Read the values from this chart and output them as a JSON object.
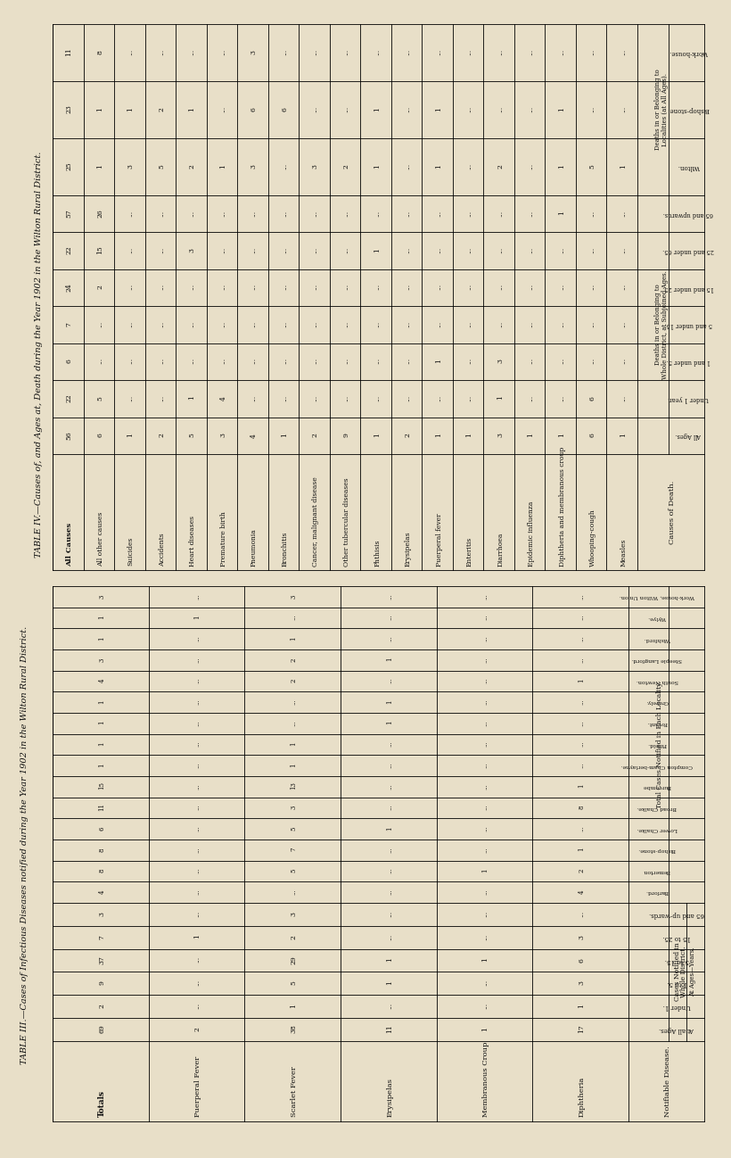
{
  "bg_color": "#e8dfc8",
  "page_title_t3": "TABLE III.—Cases of Infectious Diseases notified during the Year 1902 in the Wilton Rural District.",
  "page_title_t4": "TABLE IV.—Causes of, and Ages at, Death during the Year 1902 in the Wilton Rural District.",
  "diseases": [
    "Diphtheria",
    "Membranous Croup",
    "Erysipelas",
    "Scarlet Fever",
    "Puerperal Fever",
    "Totals"
  ],
  "whole_district_headers": [
    "At all Ages.",
    "Under 1.",
    "1 to 5.",
    "5 to 15.",
    "15 to 25.",
    "65 and up-wards."
  ],
  "whole_district_data": [
    [
      17,
      1,
      3,
      6,
      3,
      "..."
    ],
    [
      1,
      "...",
      "...",
      1,
      "...",
      "..."
    ],
    [
      11,
      "...",
      1,
      1,
      "...",
      "..."
    ],
    [
      38,
      1,
      5,
      29,
      2,
      3
    ],
    [
      2,
      "...",
      "...",
      "...",
      1,
      "..."
    ],
    [
      69,
      2,
      9,
      37,
      7,
      3
    ]
  ],
  "locality_headers": [
    "Barford.",
    "Bemerton",
    "Bishop-stone.",
    "Lower Chalke.",
    "Broad Chalke.",
    "Burcombe",
    "Compton Cham-berlayne.",
    "Fifield.",
    "Fovant.",
    "Grovely.",
    "South Newton.",
    "Steeple Langford.",
    "Wishford.",
    "Wylye.",
    "Work-house, Wilton Union."
  ],
  "locality_data": [
    [
      4,
      2,
      1,
      "...",
      8,
      1,
      "...",
      "...",
      "...",
      "...",
      1,
      "...",
      "...",
      "...",
      "..."
    ],
    [
      "...",
      1,
      "...",
      "...",
      "...",
      "...",
      "...",
      "...",
      "...",
      "...",
      "...",
      "...",
      "...",
      "...",
      "..."
    ],
    [
      "...",
      "...",
      "...",
      1,
      "...",
      "...",
      "...",
      "...",
      1,
      1,
      "...",
      1,
      "...",
      "...",
      "..."
    ],
    [
      "...",
      5,
      7,
      5,
      3,
      13,
      1,
      1,
      "...",
      "...",
      2,
      2,
      1,
      "...",
      3
    ],
    [
      "...",
      "...",
      "...",
      "...",
      "...",
      "...",
      "...",
      "...",
      "...",
      "...",
      "...",
      "...",
      "...",
      1,
      "..."
    ],
    [
      4,
      8,
      8,
      6,
      11,
      15,
      1,
      1,
      1,
      1,
      4,
      3,
      1,
      1,
      3
    ]
  ],
  "causes_of_death": [
    "Measles",
    "Whooping-cough",
    "Diphtheria and membranous croup",
    "Epidemic influenza",
    "Diarrhoea",
    "Enteritis",
    "Puerperal fever",
    "Erysipelas",
    "Phthisis",
    "Other tubercular diseases",
    "Cancer, malignant disease",
    "Bronchitis",
    "Pneumonia",
    "Premature birth",
    "Heart diseases",
    "Accidents",
    "Suicides",
    "All other causes",
    "All Causes"
  ],
  "t4_age_headers": [
    "All Ages.",
    "Under 1 year.",
    "1 and under 5.",
    "5 and under 15.",
    "15 and under 25.",
    "25 and under 65.",
    "65 and upwards."
  ],
  "t4_age_data": [
    [
      1,
      "...",
      "...",
      "...",
      "...",
      "...",
      "..."
    ],
    [
      6,
      6,
      "...",
      "...",
      "...",
      "...",
      "..."
    ],
    [
      1,
      "...",
      "...",
      "...",
      "...",
      "...",
      1
    ],
    [
      1,
      "...",
      "...",
      "...",
      "...",
      "...",
      "..."
    ],
    [
      3,
      1,
      3,
      "...",
      "...",
      "...",
      "..."
    ],
    [
      1,
      "...",
      "...",
      "...",
      "...",
      "...",
      "..."
    ],
    [
      1,
      "...",
      1,
      "...",
      "...",
      "...",
      "..."
    ],
    [
      2,
      "...",
      "...",
      "...",
      "...",
      "...",
      "..."
    ],
    [
      1,
      "...",
      "...",
      "...",
      "...",
      1,
      "..."
    ],
    [
      9,
      "...",
      "...",
      "...",
      "...",
      "...",
      "..."
    ],
    [
      2,
      "...",
      "...",
      "...",
      "...",
      "...",
      "..."
    ],
    [
      1,
      "...",
      "...",
      "...",
      "...",
      "...",
      "..."
    ],
    [
      4,
      "...",
      "...",
      "...",
      "...",
      "...",
      "..."
    ],
    [
      3,
      4,
      "...",
      "...",
      "...",
      "...",
      "..."
    ],
    [
      5,
      1,
      "...",
      "...",
      "...",
      3,
      "..."
    ],
    [
      2,
      "...",
      "...",
      "...",
      "...",
      "...",
      "..."
    ],
    [
      1,
      "...",
      "...",
      "...",
      "...",
      "...",
      "..."
    ],
    [
      6,
      5,
      "...",
      "...",
      2,
      15,
      26
    ],
    [
      56,
      22,
      6,
      7,
      24,
      22,
      57
    ]
  ],
  "t4_loc_headers": [
    "Wilton.",
    "Bishop-stone.",
    "Work-house."
  ],
  "t4_loc_data": [
    [
      1,
      "...",
      "..."
    ],
    [
      5,
      "...",
      "..."
    ],
    [
      1,
      1,
      "..."
    ],
    [
      "...",
      "...",
      "..."
    ],
    [
      2,
      "...",
      "..."
    ],
    [
      "...",
      "...",
      "..."
    ],
    [
      1,
      1,
      "..."
    ],
    [
      "...",
      "...",
      "..."
    ],
    [
      1,
      1,
      "..."
    ],
    [
      2,
      "...",
      "..."
    ],
    [
      3,
      "...",
      "..."
    ],
    [
      "...",
      6,
      "..."
    ],
    [
      3,
      6,
      3
    ],
    [
      1,
      "...",
      "..."
    ],
    [
      2,
      1,
      "..."
    ],
    [
      5,
      2,
      "..."
    ],
    [
      3,
      1,
      "..."
    ],
    [
      1,
      1,
      8
    ],
    [
      25,
      23,
      11
    ]
  ]
}
